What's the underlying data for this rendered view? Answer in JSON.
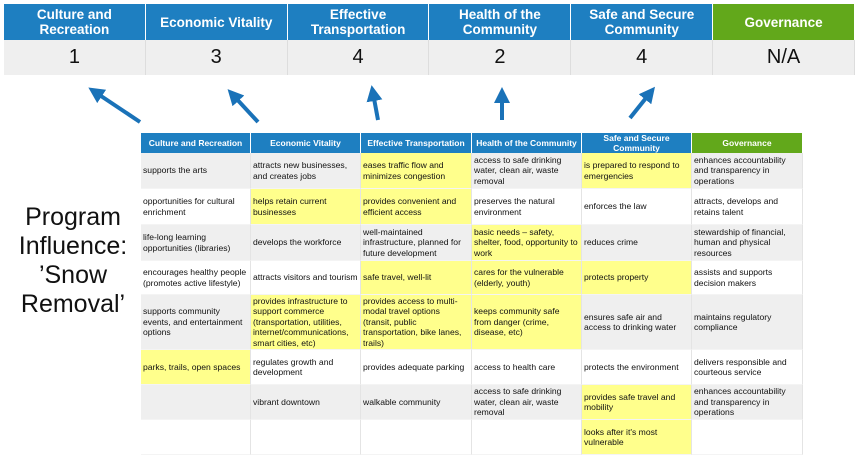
{
  "categories": [
    "Culture and Recreation",
    "Economic Vitality",
    "Effective Transportation",
    "Health of the Community",
    "Safe and Secure Community",
    "Governance"
  ],
  "scores": [
    "1",
    "3",
    "4",
    "2",
    "4",
    "N/A"
  ],
  "program_label": "Program Influence: ’Snow Removal’",
  "colors": {
    "header_blue": "#1e7fc1",
    "governance_green": "#62a81b",
    "highlight_yellow": "#ffff8c",
    "row_grey": "#efefef"
  },
  "table": {
    "headers": [
      "Culture and Recreation",
      "Economic Vitality",
      "Effective Transportation",
      "Health of the Community",
      "Safe and Secure Community",
      "Governance"
    ],
    "rows": [
      {
        "cells": [
          "supports the arts",
          "attracts new businesses, and creates jobs",
          "eases traffic flow and minimizes congestion",
          "access to safe drinking water, clean air, waste removal",
          "is prepared to respond to emergencies",
          "enhances accountability and transparency in operations"
        ],
        "highlighted": [
          false,
          false,
          true,
          false,
          true,
          false
        ]
      },
      {
        "cells": [
          "opportunities for cultural enrichment",
          "helps retain current businesses",
          "provides convenient and efficient access",
          "preserves the natural environment",
          "enforces the law",
          "attracts, develops and retains talent"
        ],
        "highlighted": [
          false,
          true,
          true,
          false,
          false,
          false
        ]
      },
      {
        "cells": [
          "life-long learning opportunities (libraries)",
          "develops the workforce",
          "well-maintained infrastructure, planned for future development",
          "basic needs – safety, shelter, food, opportunity to work",
          "reduces crime",
          "stewardship of financial, human and physical resources"
        ],
        "highlighted": [
          false,
          false,
          false,
          true,
          false,
          false
        ]
      },
      {
        "cells": [
          "encourages healthy people (promotes active lifestyle)",
          "attracts visitors and tourism",
          "safe travel, well-lit",
          "cares for the vulnerable (elderly, youth)",
          "protects property",
          "assists and supports decision makers"
        ],
        "highlighted": [
          false,
          false,
          true,
          true,
          true,
          false
        ]
      },
      {
        "cells": [
          "supports community events, and entertainment options",
          "provides infrastructure to support commerce (transportation, utilities, internet/communications, smart cities, etc)",
          "provides access to multi-modal travel options (transit, public transportation, bike lanes, trails)",
          "keeps community safe from danger (crime, disease, etc)",
          "ensures safe air and access to drinking water",
          "maintains regulatory compliance"
        ],
        "highlighted": [
          false,
          true,
          true,
          true,
          false,
          false
        ]
      },
      {
        "cells": [
          "parks, trails, open spaces",
          "regulates growth and development",
          "provides adequate parking",
          "access to health care",
          "protects the environment",
          "delivers responsible and courteous service"
        ],
        "highlighted": [
          true,
          false,
          false,
          false,
          false,
          false
        ]
      },
      {
        "cells": [
          "",
          "vibrant downtown",
          "walkable community",
          "access to safe drinking water, clean air, waste removal",
          "provides safe travel and mobility",
          "enhances accountability and transparency in operations"
        ],
        "highlighted": [
          false,
          false,
          false,
          false,
          true,
          false
        ]
      },
      {
        "cells": [
          "",
          "",
          "",
          "",
          "looks after it's most vulnerable",
          ""
        ],
        "highlighted": [
          false,
          false,
          false,
          false,
          true,
          false
        ]
      }
    ]
  }
}
